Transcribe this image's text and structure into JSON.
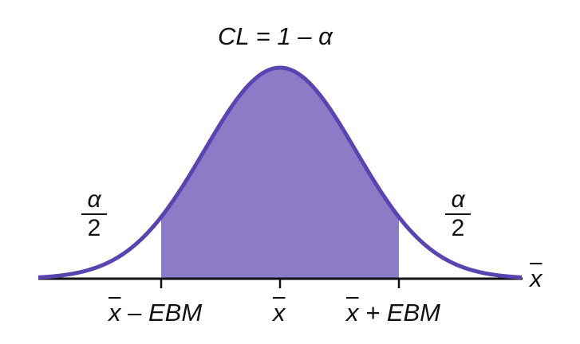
{
  "figure": {
    "title": "CL = 1 – α",
    "left_tail": {
      "numerator": "α",
      "denominator": "2"
    },
    "right_tail": {
      "numerator": "α",
      "denominator": "2"
    },
    "axis_symbol": "x",
    "tick_labels": {
      "lower": {
        "symbol": "x",
        "rest": " – EBM"
      },
      "center": {
        "symbol": "x"
      },
      "upper": {
        "symbol": "x",
        "rest": " + EBM"
      }
    },
    "colors": {
      "curve": "#5a44b0",
      "fill": "#8c7cc7",
      "axis": "#111111",
      "text": "#111111"
    }
  }
}
